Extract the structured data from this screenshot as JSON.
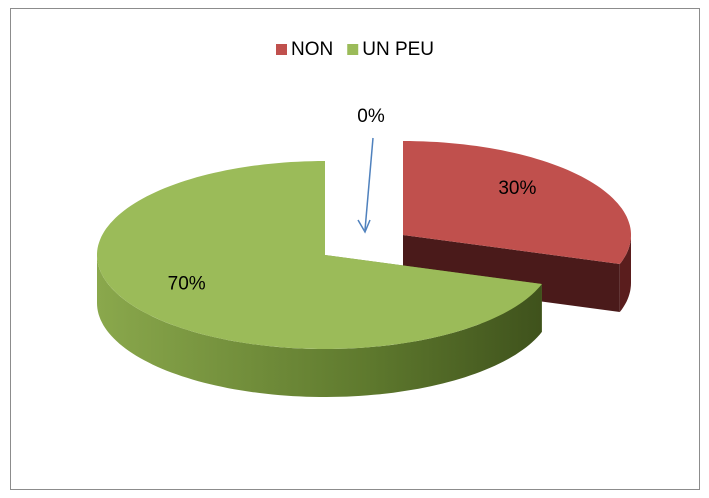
{
  "chart_data": {
    "type": "pie3d",
    "categories": [
      "NON",
      "UN PEU",
      null
    ],
    "values": [
      30,
      70,
      0
    ],
    "value_labels": [
      "30%",
      "70%",
      "0%"
    ],
    "colors": [
      "#c0504d",
      "#9bbb59",
      null
    ],
    "legend": "top"
  }
}
